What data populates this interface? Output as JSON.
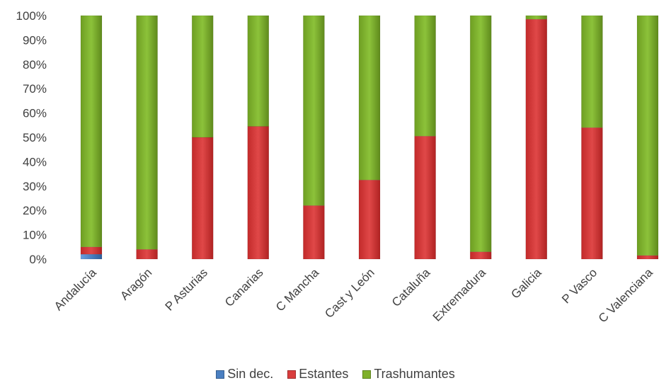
{
  "chart_data": {
    "type": "bar",
    "stacked": true,
    "percent": true,
    "categories": [
      "Andalucía",
      "Aragón",
      "P Asturias",
      "Canarias",
      "C Mancha",
      "Cast y León",
      "Cataluña",
      "Extremadura",
      "Galicia",
      "P Vasco",
      "C Valenciana"
    ],
    "series": [
      {
        "name": "Sin dec.",
        "color": "#4a7fc1",
        "values": [
          2,
          0,
          0,
          0,
          0,
          0,
          0,
          0,
          0,
          0,
          0
        ]
      },
      {
        "name": "Estantes",
        "color": "#d93d3d",
        "values": [
          3,
          4,
          50,
          54.5,
          22,
          32.5,
          50.5,
          3,
          98.5,
          54,
          1.5
        ]
      },
      {
        "name": "Trashumantes",
        "color": "#7fb02a",
        "values": [
          95,
          96,
          50,
          45.5,
          78,
          67.5,
          49.5,
          97,
          1.5,
          46,
          98.5
        ]
      }
    ],
    "yticks": [
      "0%",
      "10%",
      "20%",
      "30%",
      "40%",
      "50%",
      "60%",
      "70%",
      "80%",
      "90%",
      "100%"
    ],
    "ylim": [
      0,
      100
    ],
    "grid": false,
    "legend_position": "bottom"
  }
}
